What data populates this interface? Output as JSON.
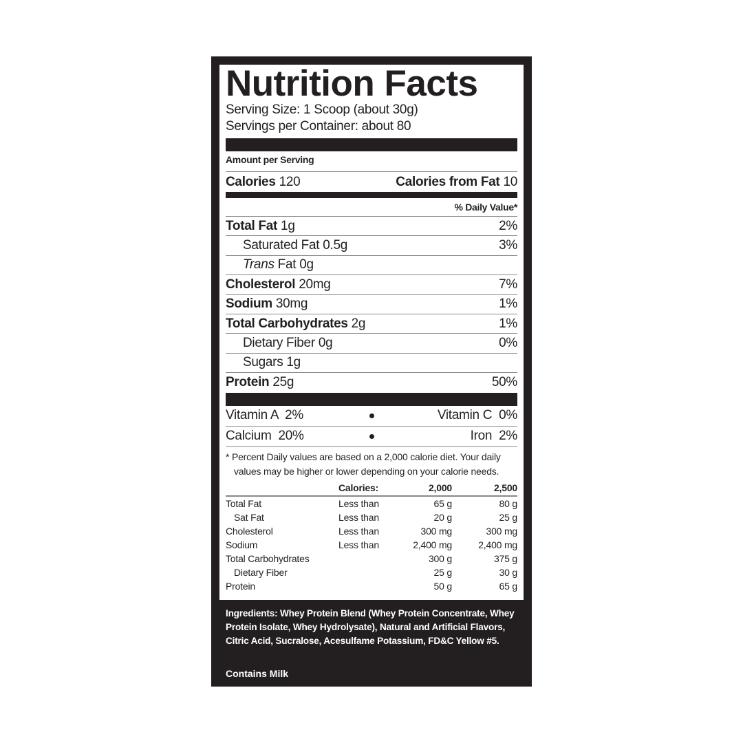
{
  "label": {
    "title": "Nutrition Facts",
    "serving_size": "Serving Size: 1 Scoop (about 30g)",
    "servings_per_container": "Servings per Container: about 80",
    "amount_per_serving": "Amount per Serving",
    "calories_label": "Calories",
    "calories_value": "120",
    "calories_fat_label": "Calories from Fat",
    "calories_fat_value": "10",
    "daily_value_header": "% Daily Value*",
    "nutrients": [
      {
        "name": "Total Fat",
        "amount": "1g",
        "dv": "2%"
      },
      {
        "name": "Saturated Fat",
        "amount": "0.5g",
        "dv": "3%"
      },
      {
        "name": "Trans",
        "name_suffix": "Fat",
        "amount": "0g",
        "dv": ""
      },
      {
        "name": "Cholesterol",
        "amount": "20mg",
        "dv": "7%"
      },
      {
        "name": "Sodium",
        "amount": "30mg",
        "dv": "1%"
      },
      {
        "name": "Total Carbohydrates",
        "amount": "2g",
        "dv": "1%"
      },
      {
        "name": "Dietary Fiber",
        "amount": "0g",
        "dv": "0%"
      },
      {
        "name": "Sugars",
        "amount": "1g",
        "dv": ""
      },
      {
        "name": "Protein",
        "amount": "25g",
        "dv": "50%"
      }
    ],
    "vitamins": [
      {
        "left": "Vitamin A  2%",
        "right": "Vitamin C  0%"
      },
      {
        "left": "Calcium  20%",
        "right": "Iron  2%"
      }
    ],
    "footnote_line1": "* Percent Daily values are based on a 2,000 calorie diet. Your daily",
    "footnote_line2": "values may be higher or lower depending on your calorie needs.",
    "reference_table": {
      "headers": [
        "",
        "Calories:",
        "2,000",
        "2,500"
      ],
      "rows": [
        [
          "Total Fat",
          "Less than",
          "65 g",
          "80 g"
        ],
        [
          "Sat Fat",
          "Less than",
          "20 g",
          "25 g"
        ],
        [
          "Cholesterol",
          "Less than",
          "300 mg",
          "300 mg"
        ],
        [
          "Sodium",
          "Less than",
          "2,400 mg",
          "2,400 mg"
        ],
        [
          "Total Carbohydrates",
          "",
          "300 g",
          "375 g"
        ],
        [
          "Dietary Fiber",
          "",
          "25 g",
          "30 g"
        ],
        [
          "Protein",
          "",
          "50 g",
          "65 g"
        ]
      ]
    }
  },
  "ingredients": {
    "label": "Ingredients:",
    "text": "Whey Protein Blend (Whey Protein Concentrate, Whey Protein Isolate, Whey Hydrolysate), Natural and Artificial Flavors, Citric Acid, Sucralose, Acesulfame Potassium, FD&C Yellow #5.",
    "allergen": "Contains Milk"
  },
  "colors": {
    "ink": "#231f20",
    "background": "#ffffff",
    "rule": "#888888"
  }
}
